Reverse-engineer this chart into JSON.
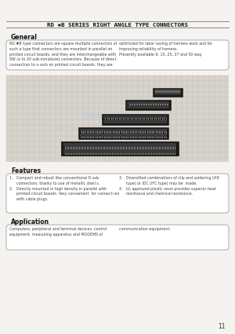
{
  "bg_color": "#f5f3ef",
  "title": "RD ✱B SERIES RIGHT ANGLE TYPE CONNECTORS",
  "title_fontsize": 5.5,
  "page_number": "11",
  "general_heading": "General",
  "general_text_left": "RD ✱B type connectors are square multiple connectors of\nsuch a type that connectors are mounted in parallel on\nprinted circuit boards, and they are interchangeable with\nSW (a to 20 sub-miniature) connectors. Because of direct\nconnection to v-outs on printed circuit boards, they are",
  "general_text_right": "optimized for labor saving of harness work and for\nimproving reliability of harness.\nPresently available 9, 15, 25, 37 and 50 way.",
  "features_heading": "Features",
  "features_text_left": "1.   Compact and robust like conventional D sub\n      connectors, thanks to use of metallic shell s.\n2.   Directly mounted in high density in parallel with\n      printed circuit boards. Very convenient  for connect-ion\n      with cable plugs.",
  "features_text_right": "3.   Diversified combinations of clip and soldering (HD\n      type) or IDC (IFC type) may be  made.\n4.   UL approved plastic resin provides superior heat\n      resistance and chemical resistance.",
  "application_heading": "Application",
  "application_text": "Computers, peripheral and terminal devices, control\nequipment, measuring apparatus and MODEMS of",
  "application_text_right": "communication equipment.",
  "line_color": "#888888",
  "box_border_color": "#aaaaaa",
  "heading_color": "#111111",
  "text_color": "#444444",
  "grid_color": "#b0b0b0",
  "img_bg": "#d8d4cc",
  "connector_dark": "#1a1a1a",
  "connector_mid": "#555555",
  "connector_light": "#888888",
  "watermark_color": "#b8cce0",
  "watermark_sub_color": "#b0b8c8"
}
